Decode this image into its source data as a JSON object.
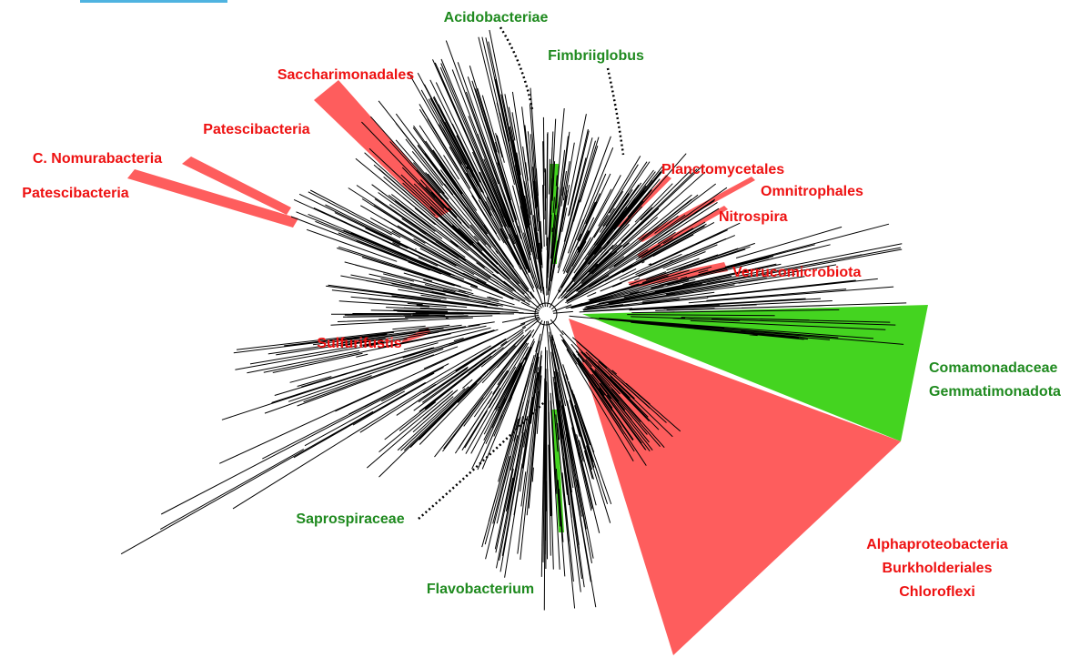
{
  "labels": {
    "acidobacteriae": "Acidobacteriae",
    "fimbriiglobus": "Fimbriiglobus",
    "saccharimonadales": "Saccharimonadales",
    "patescibacteria_upper": "Patescibacteria",
    "c_nomurabacteria": "C. Nomurabacteria",
    "patescibacteria_lower": "Patescibacteria",
    "planctomycetales": "Planctomycetales",
    "omnitrophales": "Omnitrophales",
    "nitrospira": "Nitrospira",
    "verrucomicrobiota": "Verrucomicrobiota",
    "sulfurifustis": "Sulfurifustis",
    "comamonadaceae": "Comamonadaceae",
    "gemmatimonadota": "Gemmatimonadota",
    "saprospiraceae": "Saprospiraceae",
    "flavobacterium": "Flavobacterium",
    "alphaproteobacteria": "Alphaproteobacteria",
    "burkholderiales": "Burkholderiales",
    "chloroflexi": "Chloroflexi"
  }
}
